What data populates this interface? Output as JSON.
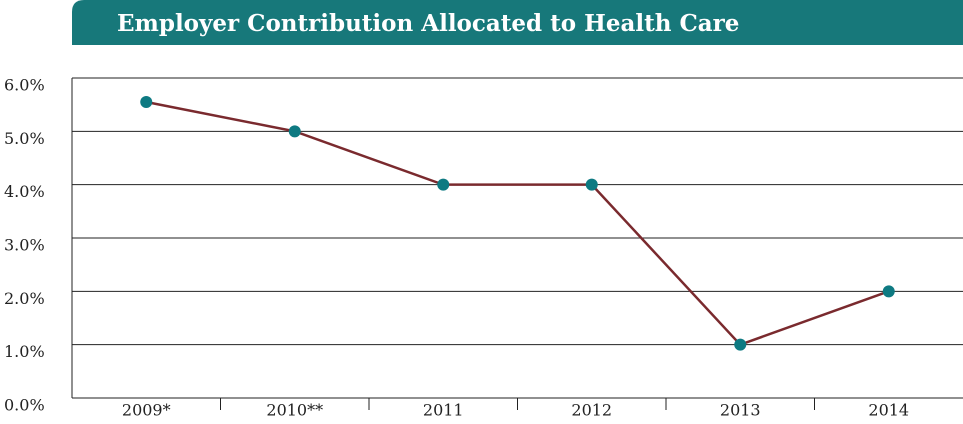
{
  "chart_data": {
    "type": "line",
    "title": "Employer Contribution Allocated to Health Care",
    "categories": [
      "2009*",
      "2010**",
      "2011",
      "2012",
      "2013",
      "2014"
    ],
    "series": [
      {
        "name": "Employer Contribution Allocated to Health Care",
        "color": "#7a2a2e",
        "marker_color": "#0e7a82",
        "values": [
          5.55,
          5.0,
          4.0,
          4.0,
          1.0,
          2.0
        ]
      }
    ],
    "ylim": [
      0,
      6
    ],
    "yticks": [
      {
        "value": 0,
        "label": "0.0%"
      },
      {
        "value": 1,
        "label": "1.0%"
      },
      {
        "value": 2,
        "label": "2.0%"
      },
      {
        "value": 3,
        "label": "3.0%"
      },
      {
        "value": 4,
        "label": "4.0%"
      },
      {
        "value": 5,
        "label": "5.0%"
      },
      {
        "value": 6,
        "label": "6.0%"
      }
    ],
    "grid": true,
    "banner_color": "#17787a"
  }
}
